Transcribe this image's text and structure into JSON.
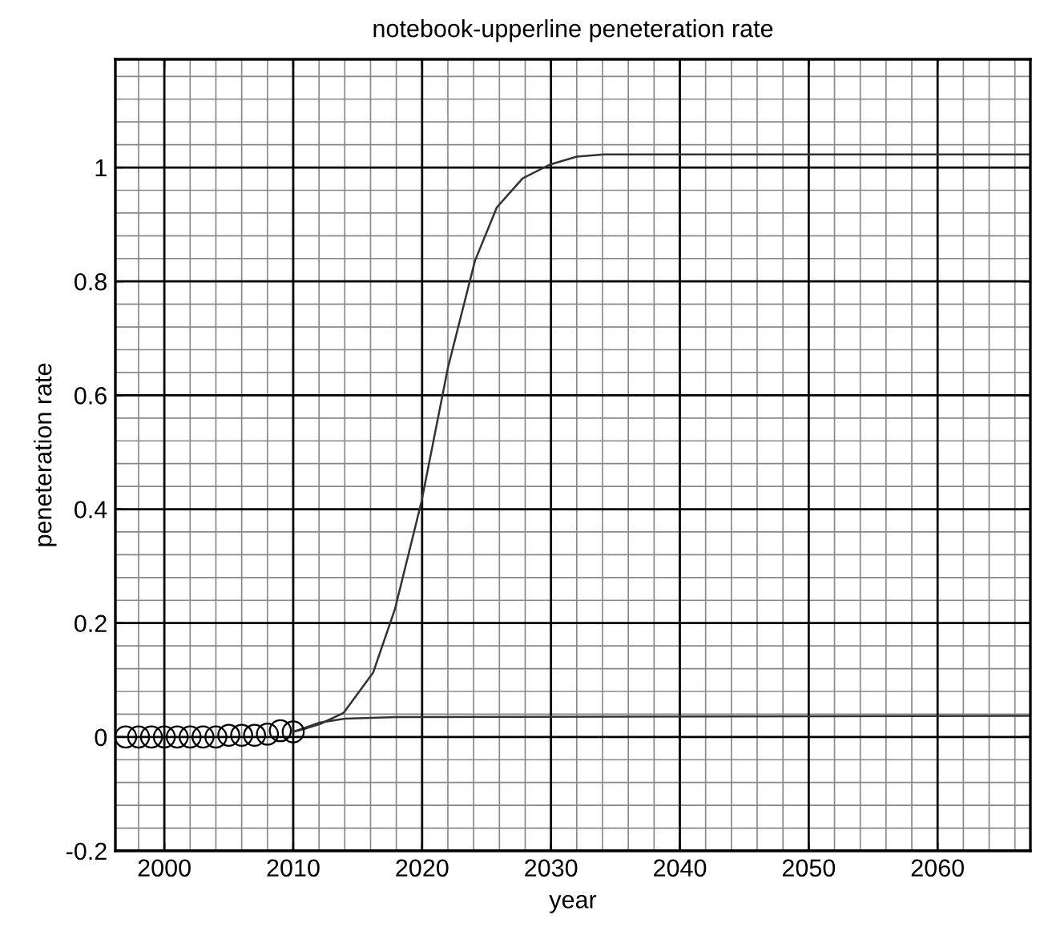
{
  "chart_data": {
    "type": "line",
    "title": "notebook-upperline peneteration rate",
    "xlabel": "year",
    "ylabel": "peneteration rate",
    "xlim": [
      1996.2,
      2067.2
    ],
    "xticks": [
      2000,
      2010,
      2020,
      2030,
      2040,
      2050,
      2060
    ],
    "ylim": [
      -0.2,
      1.19
    ],
    "yticks": [
      -0.2,
      0,
      0.2,
      0.4,
      0.6,
      0.8,
      1
    ],
    "grid": true,
    "legend": false,
    "series": [
      {
        "type": "scatter",
        "marker": "circle",
        "color": "#000000",
        "x": [
          1997,
          1998,
          1999,
          2000,
          2001,
          2002,
          2003,
          2004,
          2005,
          2006,
          2007,
          2008,
          2009,
          2010
        ],
        "values": [
          0,
          0,
          0,
          0,
          0,
          0,
          0,
          0,
          0.003,
          0.003,
          0.003,
          0.005,
          0.011,
          0.009
        ]
      },
      {
        "color": "#333333",
        "x": [
          2010,
          2011,
          2012.1,
          2013.9,
          2016.2,
          2017.9,
          2019.95,
          2022,
          2024.1,
          2025.8,
          2027.8,
          2029.9,
          2032,
          2034.1,
          2067.2
        ],
        "values": [
          0.009,
          0.015,
          0.023,
          0.042,
          0.113,
          0.225,
          0.413,
          0.648,
          0.836,
          0.93,
          0.981,
          1.005,
          1.019,
          1.023,
          1.023
        ]
      },
      {
        "color": "#333333",
        "x": [
          2010,
          2012,
          2014,
          2018,
          2067.2
        ],
        "values": [
          0.009,
          0.025,
          0.032,
          0.035,
          0.037
        ]
      }
    ]
  }
}
